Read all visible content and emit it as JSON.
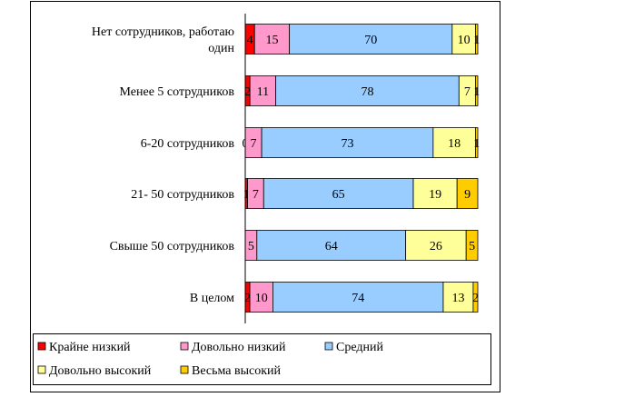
{
  "chart_data": {
    "type": "bar",
    "orientation": "horizontal",
    "stacked": true,
    "percent_stacked": true,
    "categories": [
      [
        "Нет сотрудников, работаю",
        "один"
      ],
      [
        "Менее 5 сотрудников"
      ],
      [
        "6-20 сотрудников"
      ],
      [
        "21- 50 сотрудников"
      ],
      [
        "Свыше 50 сотрудников"
      ],
      [
        "В целом"
      ]
    ],
    "series": [
      {
        "name": "Крайне низкий",
        "color": "#ff0000",
        "values": [
          4,
          2,
          0,
          1,
          0,
          2
        ],
        "labels": [
          "4",
          "2",
          "0",
          "1",
          "",
          "2"
        ]
      },
      {
        "name": "Довольно низкий",
        "color": "#ff99cc",
        "values": [
          15,
          11,
          7,
          7,
          5,
          10
        ],
        "labels": [
          "15",
          "11",
          "7",
          "7",
          "5",
          "10"
        ]
      },
      {
        "name": "Средний",
        "color": "#99ccff",
        "values": [
          70,
          78,
          73,
          65,
          64,
          74
        ],
        "labels": [
          "70",
          "78",
          "73",
          "65",
          "64",
          "74"
        ]
      },
      {
        "name": "Довольно высокий",
        "color": "#ffff99",
        "values": [
          10,
          7,
          18,
          19,
          26,
          13
        ],
        "labels": [
          "10",
          "7",
          "18",
          "19",
          "26",
          "13"
        ]
      },
      {
        "name": "Весьма высокий",
        "color": "#ffcc00",
        "values": [
          1,
          1,
          1,
          9,
          5,
          2
        ],
        "labels": [
          "1",
          "1",
          "1",
          "9",
          "5",
          "2"
        ]
      }
    ],
    "legend_position": "bottom",
    "grid": false
  }
}
